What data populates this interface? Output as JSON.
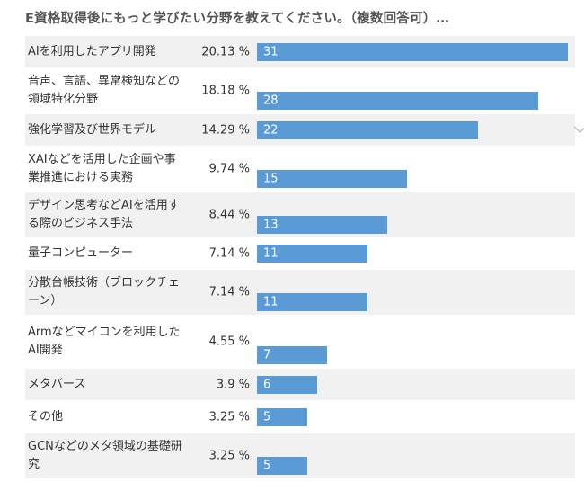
{
  "header": {
    "title": "E資格取得後にもっと学びたい分野を教えてください。（複数回答可）…"
  },
  "colors": {
    "bar": "#5b9bd5",
    "row_alt": "#f1f1f1",
    "bar_text": "#ffffff"
  },
  "chart_data": {
    "type": "bar",
    "orientation": "horizontal",
    "title": "E資格取得後にもっと学びたい分野を教えてください。（複数回答可）…",
    "categories": [
      "AIを利用したアプリ開発",
      "音声、言語、異常検知などの領域特化分野",
      "強化学習及び世界モデル",
      "XAIなどを活用した企画や事業推進における実務",
      "デザイン思考などAIを活用する際のビジネス手法",
      "量子コンピューター",
      "分散台帳技術（ブロックチェーン）",
      "Armなどマイコンを利用したAI開発",
      "メタバース",
      "その他",
      "GCNなどのメタ領域の基礎研究"
    ],
    "percent_labels": [
      "20.13 %",
      "18.18 %",
      "14.29 %",
      "9.74 %",
      "8.44 %",
      "7.14 %",
      "7.14 %",
      "4.55 %",
      "3.9 %",
      "3.25 %",
      "3.25 %"
    ],
    "values": [
      31,
      28,
      22,
      15,
      13,
      11,
      11,
      7,
      6,
      5,
      5
    ],
    "xlim": [
      0,
      31
    ],
    "grid": false,
    "legend": "none"
  }
}
